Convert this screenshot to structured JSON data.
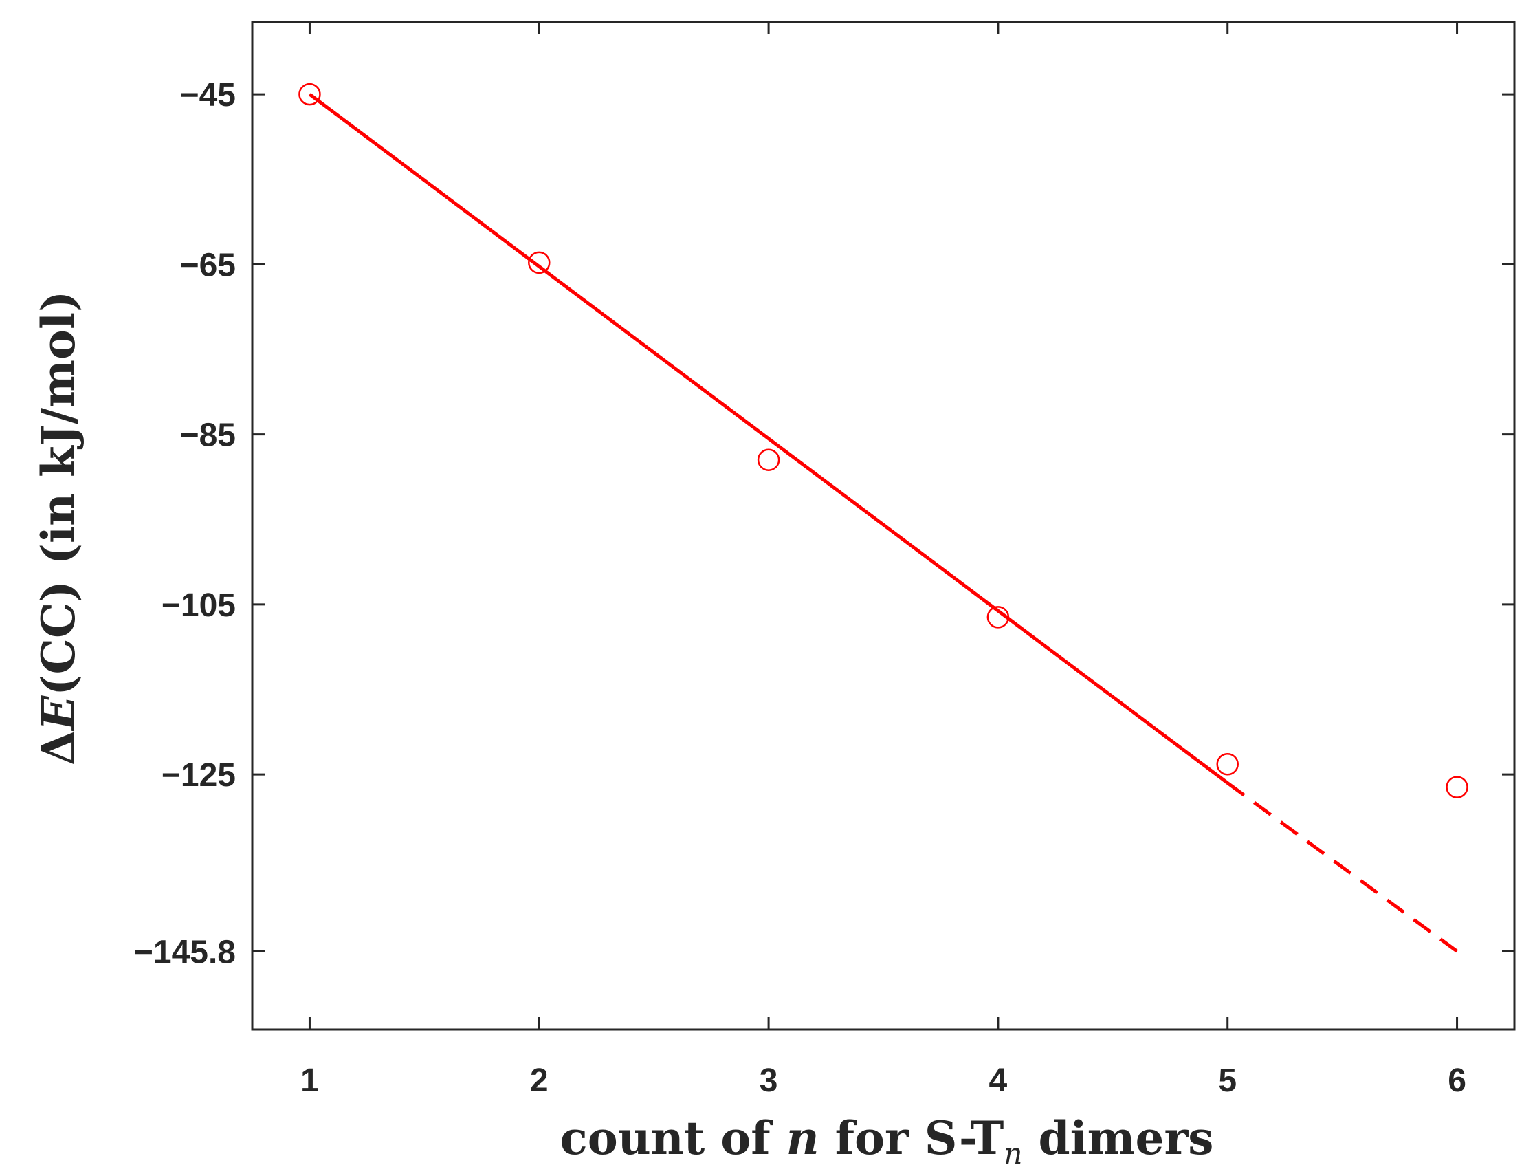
{
  "chart_data": {
    "type": "scatter",
    "xlabel": {
      "pre": "count of ",
      "var": "n",
      "mid": " for S-T",
      "sub": "n",
      "post": " dimers"
    },
    "ylabel": {
      "delta": "Δ",
      "var": "E",
      "post": "(CC) (in kJ/mol)"
    },
    "xlim": [
      0.75,
      6.25
    ],
    "ylim": [
      -155,
      -36.5
    ],
    "xticks": [
      1,
      2,
      3,
      4,
      5,
      6
    ],
    "xtick_labels": [
      "1",
      "2",
      "3",
      "4",
      "5",
      "6"
    ],
    "yticks": [
      -45,
      -65,
      -85,
      -105,
      -125,
      -145.8
    ],
    "ytick_labels": [
      "−45",
      "−65",
      "−85",
      "−105",
      "−125",
      "−145.8"
    ],
    "grid": false,
    "legend": "none",
    "series": [
      {
        "kind": "markers",
        "marker": "open-circle",
        "color": "#ff0000",
        "x": [
          1,
          2,
          3,
          4,
          5,
          6
        ],
        "y": [
          -45,
          -64.8,
          -88,
          -106.5,
          -123.8,
          -126.5
        ]
      },
      {
        "kind": "fit-line",
        "style": "solid",
        "color": "#ff0000",
        "x": [
          1,
          5
        ],
        "y": [
          -45,
          -126
        ]
      },
      {
        "kind": "fit-line",
        "style": "dashed",
        "color": "#ff0000",
        "x": [
          5,
          6
        ],
        "y": [
          -126,
          -145.8
        ]
      }
    ]
  }
}
